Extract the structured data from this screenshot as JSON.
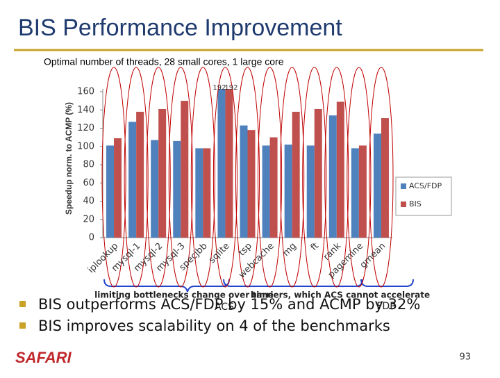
{
  "title": "BIS Performance Improvement",
  "bullets": [
    "BIS outperforms ACS/FDP by 15% and ACMP by 32%",
    "BIS improves scalability on 4 of the benchmarks"
  ],
  "annotations": [
    "limiting bottlenecks change over time",
    "ACS",
    "barriers, which ACS cannot accelerate",
    "FDP"
  ],
  "footer": {
    "logo": "SAFARI",
    "page": "93"
  },
  "chart_data": {
    "type": "bar",
    "subtitle": "Optimal number of threads, 28 small cores, 1 large core",
    "y_label": "Speedup norm. to ACMP (%)",
    "categories": [
      "iplookup",
      "mysql-1",
      "mysql-2",
      "mysql-3",
      "specjbb",
      "sqlite",
      "tsp",
      "webcache",
      "mg",
      "ft",
      "rank",
      "pagemine",
      "gmean"
    ],
    "series": [
      {
        "name": "ACS/FDP",
        "color": "#4f81bd",
        "values": [
          101,
          127,
          107,
          106,
          98,
          192,
          123,
          101,
          102,
          101,
          134,
          98,
          114
        ],
        "value_labels": [
          null,
          null,
          null,
          null,
          null,
          "192",
          null,
          null,
          null,
          null,
          null,
          null,
          null
        ]
      },
      {
        "name": "BIS",
        "color": "#c0504d",
        "values": [
          109,
          138,
          141,
          150,
          98,
          192,
          118,
          110,
          138,
          141,
          149,
          101,
          131
        ],
        "value_labels": [
          null,
          null,
          null,
          null,
          null,
          "192",
          null,
          null,
          null,
          null,
          null,
          null,
          null
        ]
      }
    ],
    "ylim": [
      0,
      160
    ],
    "yticks": [
      0,
      20,
      40,
      60,
      80,
      100,
      120,
      140,
      160
    ],
    "grid": false,
    "legend": "right"
  }
}
